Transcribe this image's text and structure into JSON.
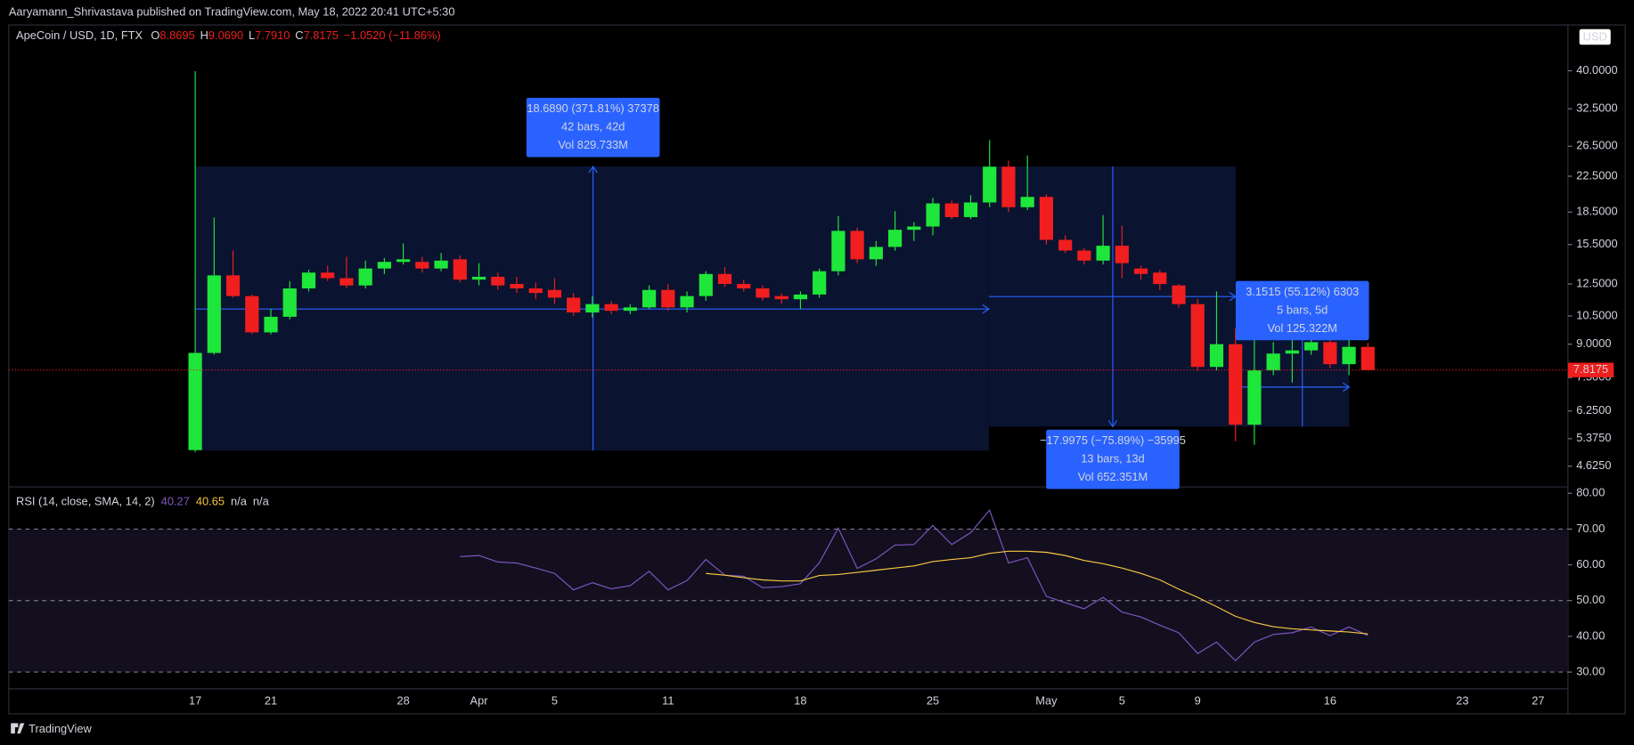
{
  "header": {
    "text": "Aaryamann_Shrivastava published on TradingView.com, May 18, 2022 20:41 UTC+5:30"
  },
  "footer": {
    "brand": "TradingView"
  },
  "chart_data": [
    {
      "type": "candlestick",
      "title": "ApeCoin / USD, 1D, FTX",
      "currency": "USD",
      "status": [
        {
          "key": "O",
          "text": "8.8695"
        },
        {
          "key": "H",
          "text": "9.0690"
        },
        {
          "key": "L",
          "text": "7.7910"
        },
        {
          "key": "C",
          "text": "7.8175"
        },
        {
          "text": "−1.0520 (−11.86%)"
        }
      ],
      "categories": [
        "17",
        null,
        null,
        null,
        "21",
        null,
        null,
        null,
        null,
        null,
        null,
        "28",
        null,
        null,
        null,
        "Apr",
        null,
        null,
        null,
        "5",
        null,
        null,
        null,
        null,
        null,
        "11",
        null,
        null,
        null,
        null,
        null,
        null,
        "18",
        null,
        null,
        null,
        null,
        null,
        null,
        "25",
        null,
        null,
        null,
        null,
        null,
        "May",
        null,
        null,
        null,
        "5",
        null,
        null,
        null,
        "9",
        null,
        null,
        null,
        null,
        null,
        null,
        "16",
        null,
        null,
        null,
        null,
        null,
        null,
        "23",
        null,
        null,
        null,
        "27",
        null
      ],
      "open": [
        5.05,
        8.58,
        13.1,
        11.7,
        9.6,
        10.45,
        12.2,
        13.3,
        12.9,
        12.4,
        13.6,
        14.1,
        14.1,
        13.6,
        14.3,
        12.8,
        13.0,
        12.5,
        12.2,
        12.1,
        11.6,
        10.7,
        11.2,
        10.8,
        11.0,
        12.1,
        11.0,
        11.7,
        13.2,
        12.5,
        12.2,
        11.7,
        11.5,
        11.8,
        13.4,
        16.7,
        14.3,
        15.3,
        16.8,
        17.1,
        19.4,
        18.0,
        19.5,
        23.7,
        19.0,
        20.1,
        15.9,
        15.0,
        14.2,
        15.4,
        13.6,
        13.3,
        12.4,
        11.2,
        7.95,
        9.0,
        5.8,
        7.8,
        8.55,
        8.7,
        9.1,
        8.07,
        8.8695,
        null,
        null,
        null,
        null,
        null,
        null,
        null,
        null,
        null,
        null
      ],
      "high": [
        39.9,
        17.96,
        15.0,
        11.8,
        10.9,
        12.7,
        13.5,
        13.8,
        14.5,
        14.2,
        14.4,
        15.6,
        14.5,
        14.8,
        14.6,
        14.0,
        13.3,
        13.0,
        12.6,
        12.9,
        11.9,
        11.7,
        11.4,
        11.2,
        12.4,
        12.5,
        12.0,
        13.4,
        13.7,
        12.8,
        12.4,
        11.9,
        12.0,
        13.6,
        18.1,
        17.0,
        15.8,
        18.6,
        17.5,
        20.0,
        19.7,
        20.3,
        27.4,
        24.5,
        25.2,
        20.4,
        16.3,
        15.2,
        18.2,
        17.2,
        13.8,
        13.5,
        12.5,
        11.5,
        12.0,
        9.8,
        9.3,
        9.1,
        9.7,
        9.3,
        9.4,
        9.3,
        9.069,
        null,
        null,
        null,
        null,
        null,
        null,
        null,
        null,
        null,
        null
      ],
      "low": [
        5.0,
        8.5,
        11.6,
        9.5,
        9.5,
        10.3,
        12.0,
        12.7,
        12.2,
        12.2,
        13.2,
        13.9,
        13.3,
        13.4,
        12.6,
        12.4,
        12.1,
        11.9,
        11.5,
        11.2,
        10.5,
        10.4,
        10.6,
        10.6,
        10.9,
        10.8,
        10.7,
        11.4,
        12.3,
        12.0,
        11.4,
        11.2,
        10.9,
        11.6,
        13.1,
        14.0,
        13.8,
        15.0,
        15.8,
        16.3,
        17.8,
        17.8,
        19.0,
        18.5,
        18.7,
        15.5,
        14.8,
        13.9,
        13.9,
        12.9,
        12.8,
        12.1,
        11.0,
        7.8,
        7.8,
        5.3,
        5.2,
        7.6,
        7.3,
        8.5,
        7.9,
        7.6,
        7.791,
        null,
        null,
        null,
        null,
        null,
        null,
        null,
        null,
        null,
        null
      ],
      "close": [
        8.58,
        13.1,
        11.7,
        9.6,
        10.45,
        12.2,
        13.3,
        12.9,
        12.4,
        13.6,
        14.1,
        14.3,
        13.6,
        14.2,
        12.8,
        13.0,
        12.4,
        12.2,
        11.9,
        11.6,
        10.7,
        11.2,
        10.8,
        11.0,
        12.1,
        11.0,
        11.7,
        13.2,
        12.5,
        12.2,
        11.6,
        11.5,
        11.8,
        13.4,
        16.7,
        14.3,
        15.3,
        16.8,
        17.1,
        19.4,
        18.0,
        19.5,
        23.7,
        19.0,
        20.1,
        15.9,
        15.0,
        14.2,
        15.4,
        14.0,
        13.2,
        12.5,
        11.2,
        7.95,
        9.0,
        5.8,
        7.8,
        8.55,
        8.7,
        9.1,
        8.07,
        8.87,
        7.8175,
        null,
        null,
        null,
        null,
        null,
        null,
        null,
        null,
        null,
        null
      ],
      "up_color": "#1fe63a",
      "down_color": "#f01e1e",
      "last_color": "#f01e1e",
      "log_scale": true,
      "ylim": [
        4.13,
        50.2
      ],
      "yticks": [
        {
          "value": 40,
          "label": "40.0000"
        },
        {
          "value": 32.5,
          "label": "32.5000"
        },
        {
          "value": 26.5,
          "label": "26.5000"
        },
        {
          "value": 22.5,
          "label": "22.5000"
        },
        {
          "value": 18.5,
          "label": "18.5000"
        },
        {
          "value": 15.5,
          "label": "15.5000"
        },
        {
          "value": 12.5,
          "label": "12.5000"
        },
        {
          "value": 10.5,
          "label": "10.5000"
        },
        {
          "value": 9,
          "label": "9.0000"
        },
        {
          "value": 7.5,
          "label": "7.5000"
        },
        {
          "value": 6.25,
          "label": "6.2500"
        },
        {
          "value": 5.375,
          "label": "5.3750"
        },
        {
          "value": 4.625,
          "label": "4.6250"
        }
      ],
      "annotations": [
        {
          "lines": [
            "18.6890 (371.81%) 37378",
            "42 bars, 42d",
            "Vol 829.733M"
          ]
        },
        {
          "lines": [
            "−17.9975 (−75.89%) −35995",
            "13 bars, 13d",
            "Vol 652.351M"
          ]
        },
        {
          "lines": [
            "3.1515 (55.12%) 6303",
            "5 bars, 5d",
            "Vol 125.322M"
          ]
        }
      ]
    },
    {
      "type": "line",
      "title": "RSI (14, close, SMA, 14, 2)",
      "status": [
        "40.27",
        "40.65",
        "n/a",
        "n/a"
      ],
      "series": [
        {
          "color": "#7e57c2",
          "values": [
            null,
            null,
            null,
            null,
            null,
            null,
            null,
            null,
            null,
            null,
            null,
            null,
            null,
            null,
            62.3,
            62.6,
            60.8,
            60.5,
            59.1,
            57.6,
            53,
            55,
            53.3,
            54.2,
            58.2,
            53,
            55.6,
            61.5,
            57.1,
            56.8,
            53.6,
            53.9,
            54.7,
            60.6,
            70.3,
            59,
            61.7,
            65.5,
            65.7,
            71,
            65.7,
            69,
            75.3,
            60.5,
            62,
            51.2,
            49.4,
            47.7,
            50.9,
            46.8,
            45.4,
            43.1,
            41,
            35.2,
            38.4,
            33.2,
            38.4,
            40.5,
            41,
            42.6,
            40.2,
            42.6,
            40.27,
            null,
            null,
            null,
            null,
            null,
            null,
            null,
            null,
            null,
            null
          ]
        },
        {
          "color": "#f7c843",
          "values": [
            null,
            null,
            null,
            null,
            null,
            null,
            null,
            null,
            null,
            null,
            null,
            null,
            null,
            null,
            null,
            null,
            null,
            null,
            null,
            null,
            null,
            null,
            null,
            null,
            null,
            null,
            null,
            57.6,
            57.1,
            56.4,
            55.8,
            55.5,
            55.5,
            57,
            57.3,
            57.9,
            58.5,
            59.1,
            59.7,
            60.9,
            61.5,
            62,
            63.2,
            63.8,
            63.8,
            63.5,
            62.6,
            61.2,
            60.3,
            59.1,
            57.6,
            55.8,
            53.2,
            50.9,
            48.3,
            45.6,
            43.9,
            42.7,
            42.1,
            41.8,
            41.5,
            41.2,
            40.65,
            null,
            null,
            null,
            null,
            null,
            null,
            null,
            null,
            null,
            null
          ]
        }
      ],
      "ylim": [
        25.9,
        81.2
      ],
      "yticks": [
        {
          "value": 80,
          "label": "80.00"
        },
        {
          "value": 70,
          "label": "70.00"
        },
        {
          "value": 60,
          "label": "60.00"
        },
        {
          "value": 50,
          "label": "50.00"
        },
        {
          "value": 40,
          "label": "40.00"
        },
        {
          "value": 30,
          "label": "30.00"
        }
      ],
      "hlines": [
        70,
        50,
        30
      ]
    }
  ]
}
